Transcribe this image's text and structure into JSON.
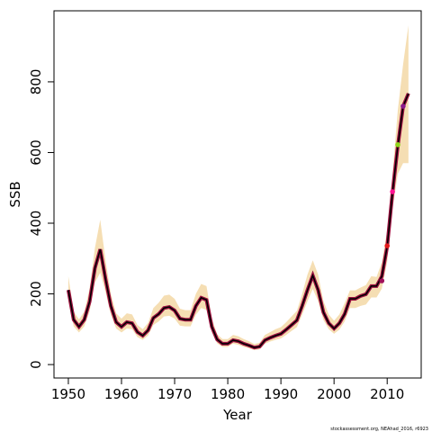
{
  "chart_data": {
    "type": "line",
    "x_label": "Year",
    "y_label": "SSB",
    "footnote": "stockassessment.org, NEAhad_2016, r6923",
    "x": [
      1950,
      1951,
      1952,
      1953,
      1954,
      1955,
      1956,
      1957,
      1958,
      1959,
      1960,
      1961,
      1962,
      1963,
      1964,
      1965,
      1966,
      1967,
      1968,
      1969,
      1970,
      1971,
      1972,
      1973,
      1974,
      1975,
      1976,
      1977,
      1978,
      1979,
      1980,
      1981,
      1982,
      1983,
      1984,
      1985,
      1986,
      1987,
      1988,
      1989,
      1990,
      1991,
      1992,
      1993,
      1994,
      1995,
      1996,
      1997,
      1998,
      1999,
      2000,
      2001,
      2002,
      2003,
      2004,
      2005,
      2006,
      2007,
      2008,
      2009,
      2010,
      2011,
      2012,
      2013,
      2014
    ],
    "values": [
      211,
      127,
      107,
      127,
      178,
      273,
      326,
      242,
      166,
      120,
      107,
      120,
      117,
      92,
      82,
      97,
      132,
      143,
      160,
      163,
      153,
      130,
      127,
      127,
      166,
      189,
      183,
      107,
      71,
      59,
      59,
      69,
      66,
      59,
      54,
      48,
      51,
      69,
      76,
      82,
      87,
      99,
      112,
      125,
      166,
      211,
      252,
      211,
      148,
      117,
      102,
      117,
      143,
      186,
      186,
      194,
      199,
      222,
      222,
      250,
      334,
      487,
      619,
      731,
      767
    ],
    "band_upper": [
      250,
      150,
      128,
      150,
      215,
      330,
      410,
      295,
      200,
      145,
      130,
      145,
      142,
      112,
      100,
      118,
      160,
      175,
      195,
      198,
      186,
      158,
      154,
      154,
      200,
      228,
      222,
      130,
      86,
      72,
      72,
      84,
      80,
      72,
      66,
      58,
      62,
      84,
      92,
      100,
      106,
      120,
      136,
      152,
      200,
      255,
      295,
      255,
      180,
      142,
      124,
      142,
      174,
      210,
      210,
      218,
      225,
      250,
      248,
      290,
      380,
      540,
      720,
      850,
      960
    ],
    "band_lower": [
      180,
      108,
      91,
      108,
      150,
      232,
      260,
      205,
      141,
      102,
      91,
      102,
      100,
      78,
      70,
      82,
      112,
      122,
      136,
      138,
      130,
      110,
      108,
      108,
      141,
      160,
      155,
      91,
      60,
      50,
      50,
      59,
      56,
      50,
      46,
      41,
      43,
      59,
      65,
      70,
      74,
      84,
      95,
      106,
      141,
      179,
      214,
      179,
      126,
      100,
      87,
      99,
      122,
      160,
      160,
      166,
      170,
      190,
      190,
      215,
      290,
      440,
      540,
      570,
      570
    ],
    "color": "#000000",
    "under_color": "#9b1040",
    "band_color": "#f5deb3",
    "points": {
      "x": [
        2009,
        2010,
        2011,
        2012,
        2013
      ],
      "values": [
        237,
        336,
        489,
        622,
        731
      ],
      "colors": [
        "#a0105a",
        "#e41a1c",
        "#ff1493",
        "#8fd61b",
        "#8b1a8b"
      ]
    },
    "xlim": [
      1947.3,
      2016.4
    ],
    "ylim": [
      -38,
      1001
    ],
    "xticks": [
      1950,
      1960,
      1970,
      1980,
      1990,
      2000,
      2010
    ],
    "yticks": [
      0,
      200,
      400,
      600,
      800
    ]
  }
}
